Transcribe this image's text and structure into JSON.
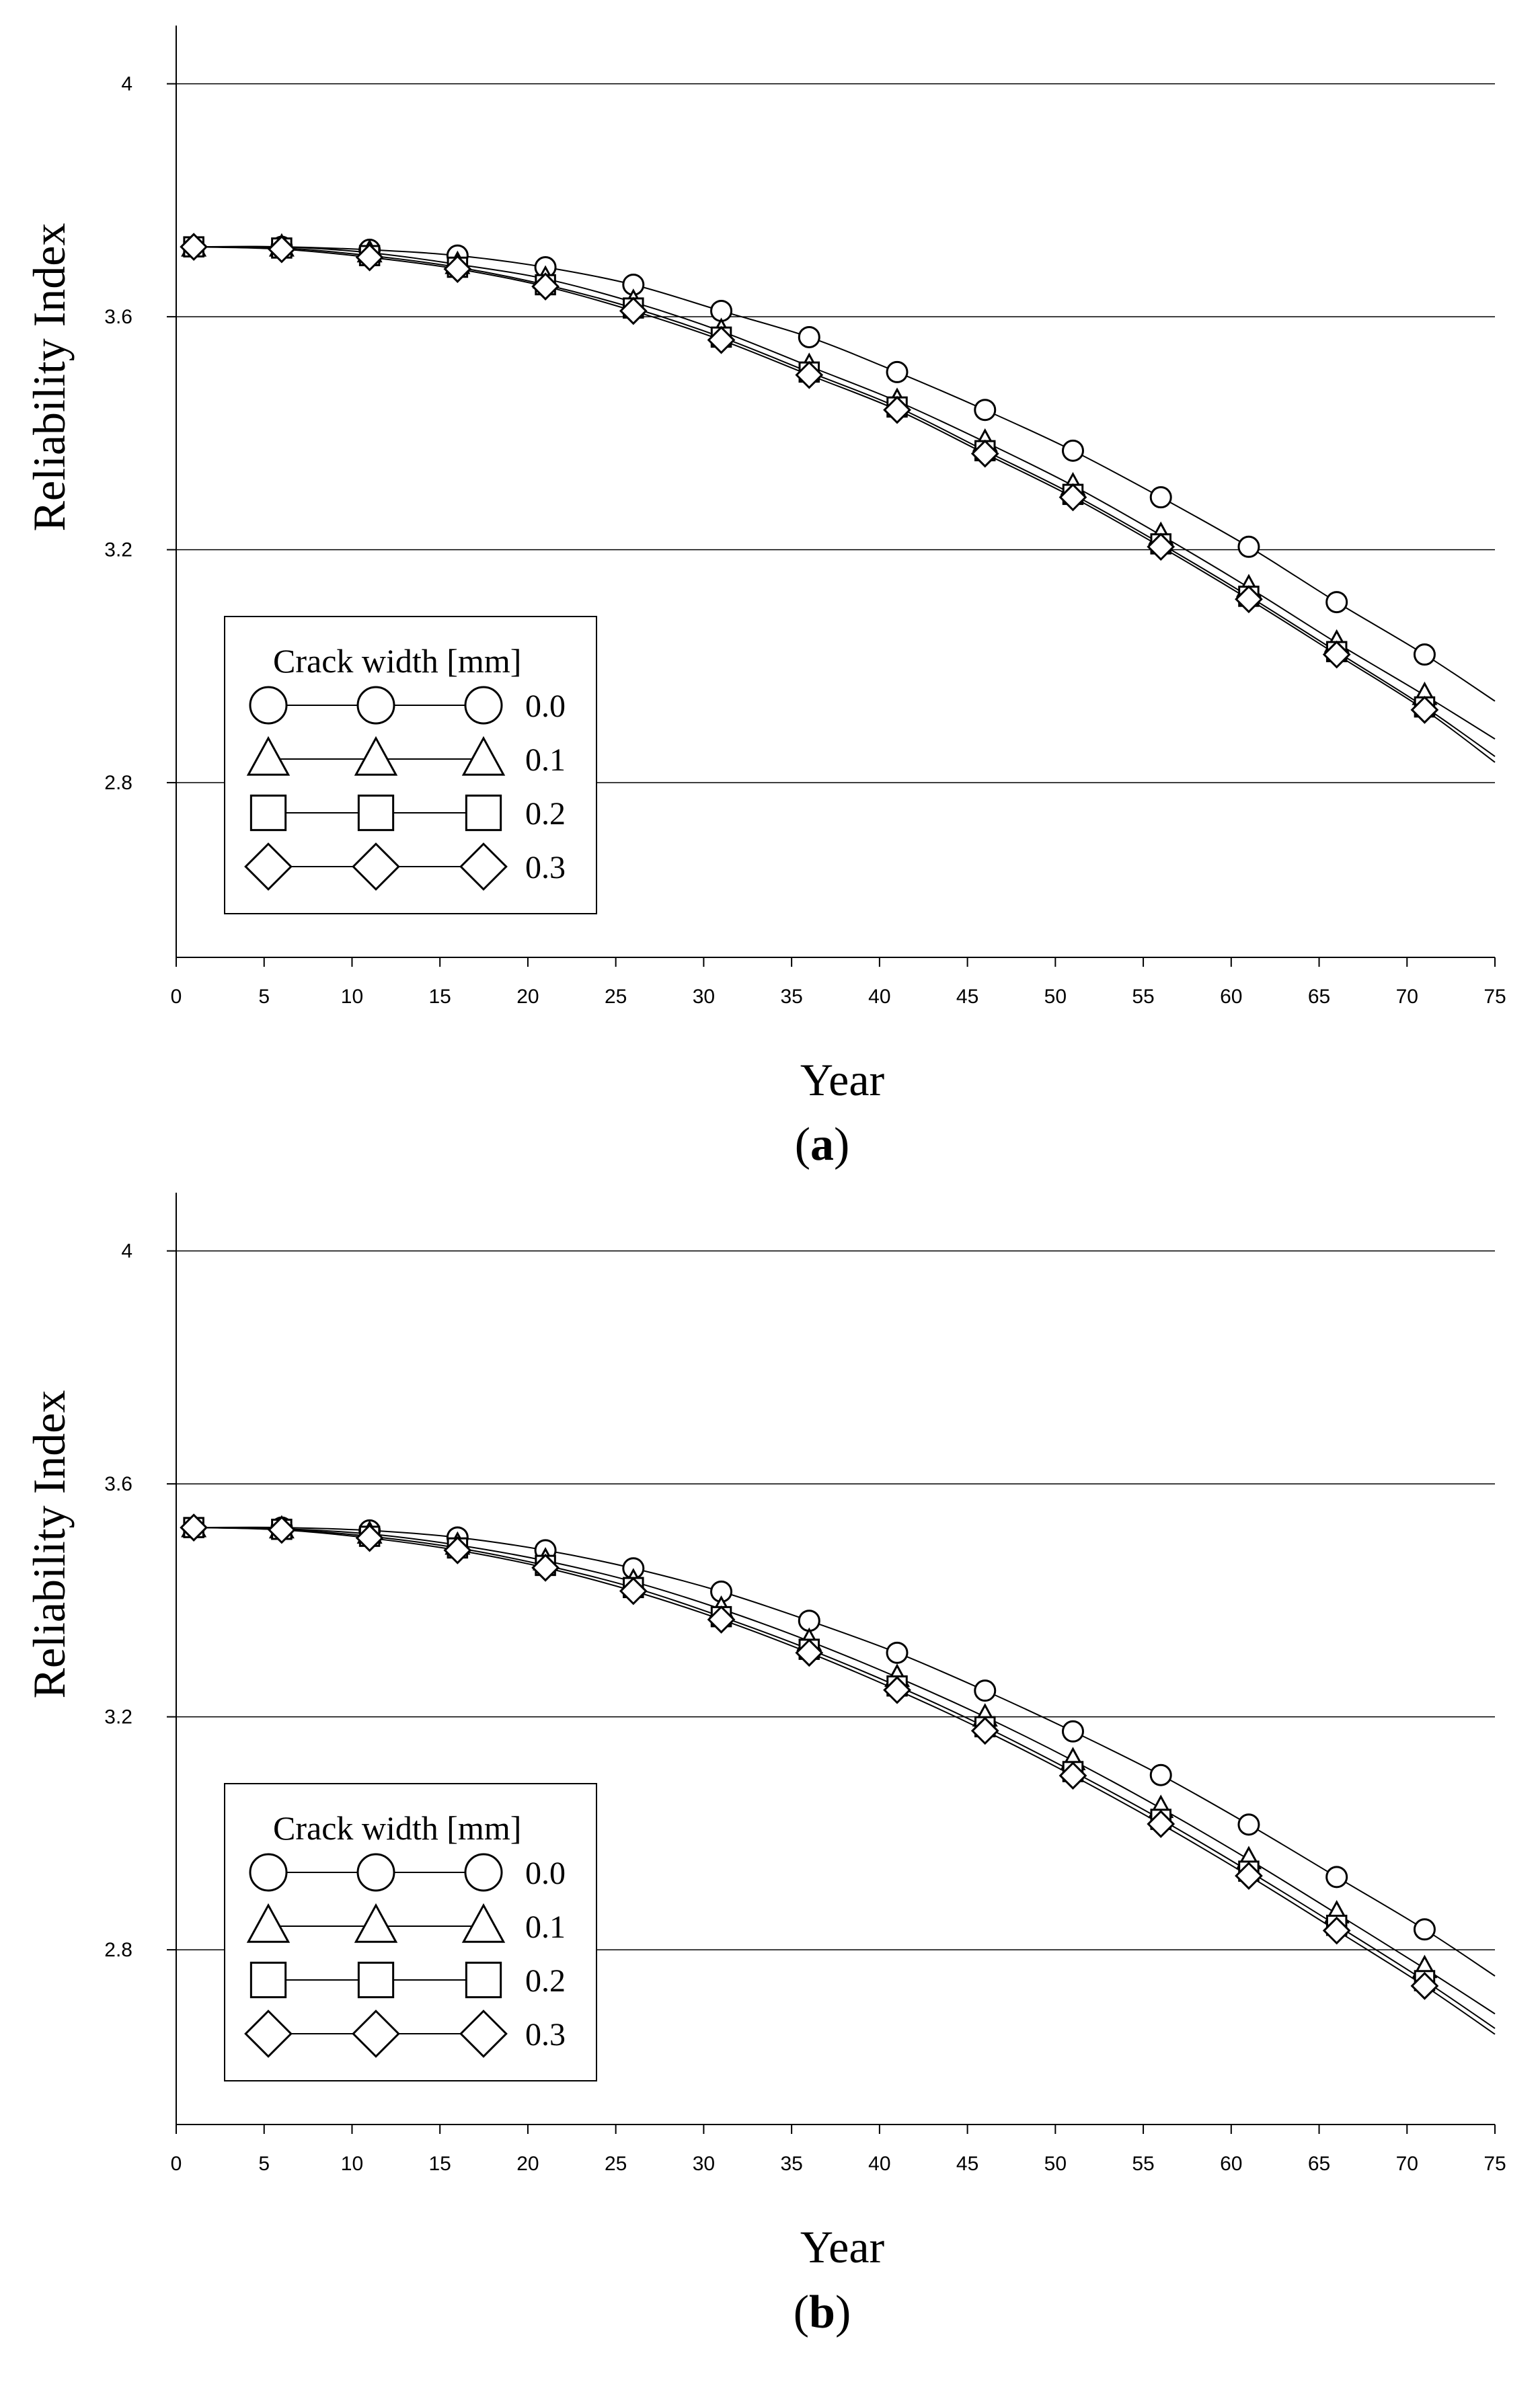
{
  "colors": {
    "line": "#000000",
    "background": "#ffffff",
    "grid": "#000000"
  },
  "chart_data": [
    {
      "type": "line",
      "panel_label": "a",
      "title": "",
      "xlabel": "Year",
      "ylabel": "Reliability Index",
      "xlim": [
        0,
        75
      ],
      "ylim": [
        2.5,
        4.1
      ],
      "x_ticks": [
        0,
        5,
        10,
        15,
        20,
        25,
        30,
        35,
        40,
        45,
        50,
        55,
        60,
        65,
        70,
        75
      ],
      "y_ticks": [
        2.8,
        3.2,
        3.6,
        4.0
      ],
      "x_tick_labels": [
        "0",
        "5",
        "10",
        "15",
        "20",
        "25",
        "30",
        "35",
        "40",
        "45",
        "50",
        "55",
        "60",
        "65",
        "70",
        "75"
      ],
      "y_tick_labels": [
        "2.8",
        "3.2",
        "3.6",
        "4"
      ],
      "grid": "horizontal",
      "legend": {
        "title": "Crack width [mm]",
        "position": "lower-left",
        "entries": [
          "0.0",
          "0.1",
          "0.2",
          "0.3"
        ]
      },
      "x": [
        1,
        6,
        11,
        16,
        21,
        26,
        31,
        36,
        41,
        46,
        51,
        56,
        61,
        66,
        71
      ],
      "series": [
        {
          "name": "0.0",
          "marker": "circle",
          "values": [
            3.72,
            3.72,
            3.715,
            3.705,
            3.685,
            3.655,
            3.61,
            3.565,
            3.505,
            3.44,
            3.37,
            3.29,
            3.205,
            3.11,
            3.02
          ],
          "end_value": 2.94
        },
        {
          "name": "0.1",
          "marker": "triangle",
          "values": [
            3.72,
            3.72,
            3.71,
            3.69,
            3.665,
            3.625,
            3.575,
            3.515,
            3.455,
            3.385,
            3.31,
            3.225,
            3.135,
            3.04,
            2.95
          ],
          "end_value": 2.875
        },
        {
          "name": "0.2",
          "marker": "square",
          "values": [
            3.72,
            3.718,
            3.705,
            3.685,
            3.655,
            3.615,
            3.565,
            3.505,
            3.445,
            3.37,
            3.295,
            3.21,
            3.12,
            3.025,
            2.93
          ],
          "end_value": 2.845
        },
        {
          "name": "0.3",
          "marker": "diamond",
          "values": [
            3.72,
            3.716,
            3.702,
            3.682,
            3.652,
            3.61,
            3.56,
            3.5,
            3.44,
            3.365,
            3.29,
            3.205,
            3.115,
            3.02,
            2.925
          ],
          "end_value": 2.835
        }
      ]
    },
    {
      "type": "line",
      "panel_label": "b",
      "title": "",
      "xlabel": "Year",
      "ylabel": "Reliability Index",
      "xlim": [
        0,
        75
      ],
      "ylim": [
        2.5,
        4.1
      ],
      "x_ticks": [
        0,
        5,
        10,
        15,
        20,
        25,
        30,
        35,
        40,
        45,
        50,
        55,
        60,
        65,
        70,
        75
      ],
      "y_ticks": [
        2.8,
        3.2,
        3.6,
        4.0
      ],
      "x_tick_labels": [
        "0",
        "5",
        "10",
        "15",
        "20",
        "25",
        "30",
        "35",
        "40",
        "45",
        "50",
        "55",
        "60",
        "65",
        "70",
        "75"
      ],
      "y_tick_labels": [
        "2.8",
        "3.2",
        "3.6",
        "4"
      ],
      "grid": "horizontal",
      "legend": {
        "title": "Crack width [mm]",
        "position": "lower-left",
        "entries": [
          "0.0",
          "0.1",
          "0.2",
          "0.3"
        ]
      },
      "x": [
        1,
        6,
        11,
        16,
        21,
        26,
        31,
        36,
        41,
        46,
        51,
        56,
        61,
        66,
        71
      ],
      "series": [
        {
          "name": "0.0",
          "marker": "circle",
          "values": [
            3.525,
            3.525,
            3.52,
            3.508,
            3.486,
            3.455,
            3.415,
            3.365,
            3.31,
            3.245,
            3.175,
            3.1,
            3.015,
            2.925,
            2.835
          ],
          "end_value": 2.755
        },
        {
          "name": "0.1",
          "marker": "triangle",
          "values": [
            3.525,
            3.523,
            3.514,
            3.495,
            3.468,
            3.432,
            3.385,
            3.33,
            3.268,
            3.2,
            3.125,
            3.043,
            2.955,
            2.862,
            2.768
          ],
          "end_value": 2.69
        },
        {
          "name": "0.2",
          "marker": "square",
          "values": [
            3.525,
            3.522,
            3.51,
            3.49,
            3.46,
            3.422,
            3.372,
            3.316,
            3.253,
            3.183,
            3.106,
            3.024,
            2.935,
            2.842,
            2.747
          ],
          "end_value": 2.665
        },
        {
          "name": "0.3",
          "marker": "diamond",
          "values": [
            3.525,
            3.521,
            3.507,
            3.486,
            3.456,
            3.416,
            3.367,
            3.31,
            3.246,
            3.176,
            3.099,
            3.016,
            2.927,
            2.833,
            2.738
          ],
          "end_value": 2.655
        }
      ]
    }
  ]
}
